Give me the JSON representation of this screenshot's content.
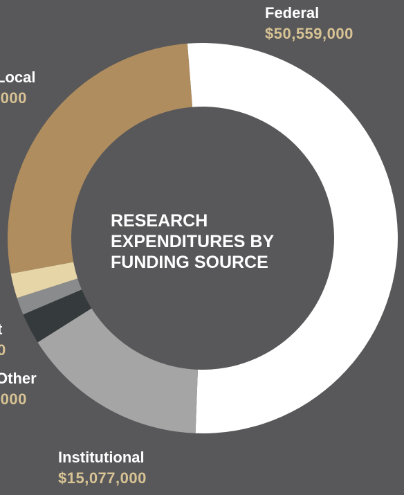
{
  "chart_data": {
    "type": "pie",
    "style": "donut",
    "title": [
      "RESEARCH",
      "EXPENDITURES BY",
      "FUNDING SOURCE"
    ],
    "series": [
      {
        "name": "Federal",
        "label": "$50,559,000",
        "value": 50559000,
        "color": "#ffffff"
      },
      {
        "name": "Institutional",
        "label": "$15,077,000",
        "value": 15077000,
        "color": "#a6a5a6"
      },
      {
        "name": "Other",
        "label": ",000",
        "value": 2500000,
        "color": "#353b3c"
      },
      {
        "name": "t",
        "label": "0",
        "value": 1400000,
        "color": "#8a8b8d"
      },
      {
        "name": "",
        "label": "",
        "value": 2000000,
        "color": "#e6d5a6"
      },
      {
        "name": "Local",
        "label": ",000",
        "value": 26000000,
        "color": "#af8d5f"
      }
    ]
  }
}
